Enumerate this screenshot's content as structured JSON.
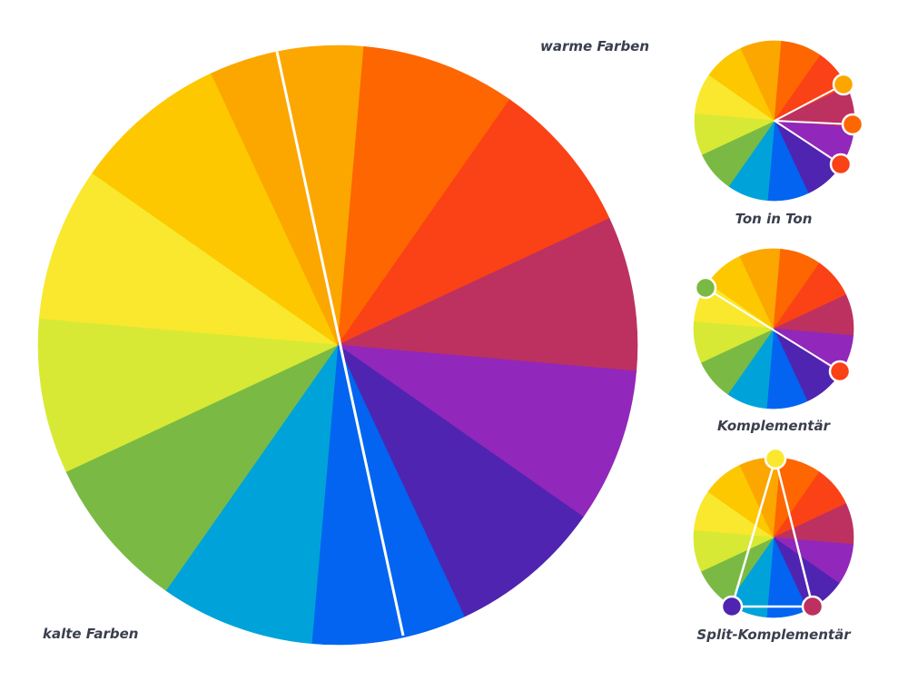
{
  "labels": {
    "warm": "warme Farben",
    "cold": "kalte Farben",
    "tone_in_tone": "Ton in Ton",
    "complementary": "Komplementär",
    "split_complementary": "Split-Komplementär"
  },
  "wheel": {
    "colors": [
      "#f9e82e",
      "#fdc800",
      "#fca600",
      "#fd6600",
      "#fb4116",
      "#bc3160",
      "#9127bb",
      "#4f24b0",
      "#0264f0",
      "#00a3d9",
      "#7aba44",
      "#d7e935"
    ],
    "divider_color": "#ffffff",
    "marker_stroke": "#ffffff"
  },
  "schemes": {
    "tone_in_tone": {
      "marker_colors": [
        "#fca600",
        "#fd6600",
        "#fb4116"
      ]
    },
    "complementary": {
      "marker_colors": [
        "#7aba44",
        "#fb4116"
      ]
    },
    "split_complementary": {
      "marker_colors": [
        "#f9e82e",
        "#4f24b0",
        "#bc3160"
      ]
    }
  }
}
